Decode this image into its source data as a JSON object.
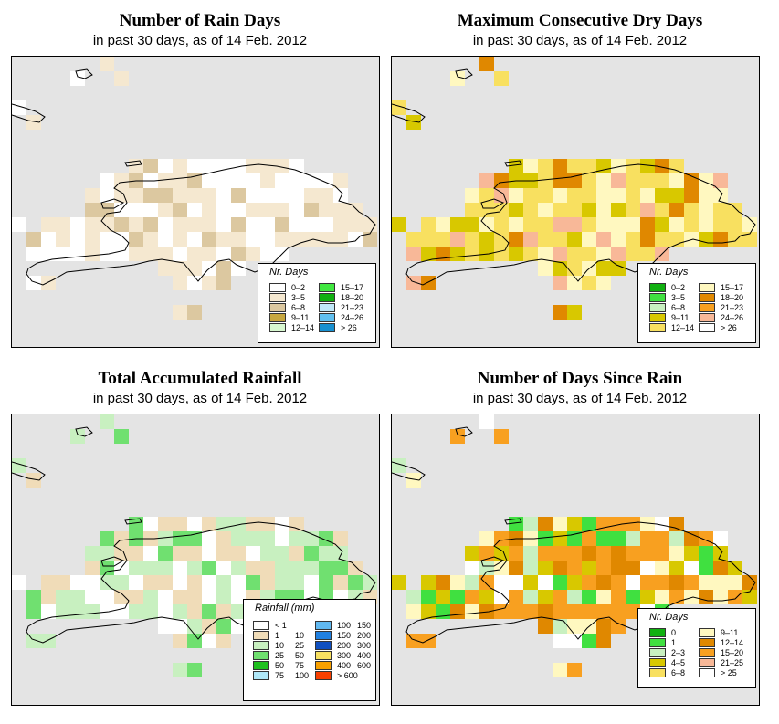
{
  "panels": [
    {
      "title": "Number of Rain Days",
      "subtitle": "in past 30 days, as of  14 Feb. 2012",
      "legend": {
        "title": "Nr. Days",
        "col1": [
          {
            "label": "0–2",
            "color": "#ffffff"
          },
          {
            "label": "3–5",
            "color": "#f5e8d0"
          },
          {
            "label": "6–8",
            "color": "#dcc8a0"
          },
          {
            "label": "9–11",
            "color": "#c8a840"
          },
          {
            "label": "12–14",
            "color": "#d8f8d0"
          }
        ],
        "col2": [
          {
            "label": "15–17",
            "color": "#40e840"
          },
          {
            "label": "18–20",
            "color": "#10b010"
          },
          {
            "label": "21–23",
            "color": "#c0e8f8"
          },
          {
            "label": "24–26",
            "color": "#60c0f0"
          },
          {
            "label": "> 26",
            "color": "#1890d0"
          }
        ]
      }
    },
    {
      "title": "Maximum Consecutive Dry Days",
      "subtitle": "in past 30 days, as of  14 Feb. 2012",
      "legend": {
        "title": "Nr. Days",
        "col1": [
          {
            "label": "0–2",
            "color": "#10b010"
          },
          {
            "label": "3–5",
            "color": "#40e040"
          },
          {
            "label": "6–8",
            "color": "#c8f0c0"
          },
          {
            "label": "9–11",
            "color": "#d8c800"
          },
          {
            "label": "12–14",
            "color": "#f8e060"
          }
        ],
        "col2": [
          {
            "label": "15–17",
            "color": "#fff8c0"
          },
          {
            "label": "18–20",
            "color": "#e08800"
          },
          {
            "label": "21–23",
            "color": "#f8a020"
          },
          {
            "label": "24–26",
            "color": "#f8b898"
          },
          {
            "label": "> 26",
            "color": "#ffffff"
          }
        ]
      }
    },
    {
      "title": "Total Accumulated Rainfall",
      "subtitle": "in past 30 days, as of  14 Feb. 2012",
      "legend": {
        "title": "Rainfall (mm)",
        "col1": [
          {
            "a": "< 1",
            "b": "",
            "color": "#ffffff"
          },
          {
            "a": "1",
            "b": "10",
            "color": "#f0dcb8"
          },
          {
            "a": "10",
            "b": "25",
            "color": "#c8f0c0"
          },
          {
            "a": "25",
            "b": "50",
            "color": "#70e070"
          },
          {
            "a": "50",
            "b": "75",
            "color": "#20c020"
          },
          {
            "a": "75",
            "b": "100",
            "color": "#b0e8f8"
          }
        ],
        "col2": [
          {
            "a": "100",
            "b": "150",
            "color": "#60b8f0"
          },
          {
            "a": "150",
            "b": "200",
            "color": "#2080e0"
          },
          {
            "a": "200",
            "b": "300",
            "color": "#1050c0"
          },
          {
            "a": "300",
            "b": "400",
            "color": "#f8e060"
          },
          {
            "a": "400",
            "b": "600",
            "color": "#f8a000"
          },
          {
            "a": "> 600",
            "b": "",
            "color": "#f84000"
          }
        ]
      }
    },
    {
      "title": "Number of Days Since Rain",
      "subtitle": "in past 30 days, as of  14 Feb. 2012",
      "legend": {
        "title": "Nr. Days",
        "col1": [
          {
            "label": "0",
            "color": "#10b010"
          },
          {
            "label": "1",
            "color": "#40e040"
          },
          {
            "label": "2–3",
            "color": "#c8f0c0"
          },
          {
            "label": "4–5",
            "color": "#d8c800"
          },
          {
            "label": "6–8",
            "color": "#f8e060"
          }
        ],
        "col2": [
          {
            "label": "9–11",
            "color": "#fff8c0"
          },
          {
            "label": "12–14",
            "color": "#e08800"
          },
          {
            "label": "15–20",
            "color": "#f8a020"
          },
          {
            "label": "21–25",
            "color": "#f8b898"
          },
          {
            "label": "> 25",
            "color": "#ffffff"
          }
        ]
      }
    }
  ]
}
